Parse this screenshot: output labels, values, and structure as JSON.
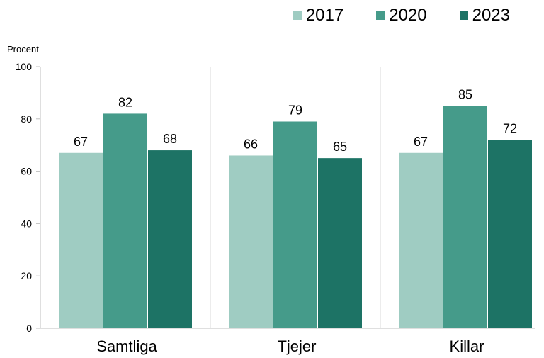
{
  "chart_data": {
    "type": "bar",
    "ylabel": "Procent",
    "ylim": [
      0,
      100
    ],
    "yticks": [
      0,
      20,
      40,
      60,
      80,
      100
    ],
    "categories": [
      "Samtliga",
      "Tjejer",
      "Killar"
    ],
    "series": [
      {
        "name": "2017",
        "color": "#9fccc2",
        "values": [
          67,
          66,
          67
        ]
      },
      {
        "name": "2020",
        "color": "#459b8a",
        "values": [
          82,
          79,
          85
        ]
      },
      {
        "name": "2023",
        "color": "#1d7365",
        "values": [
          68,
          65,
          72
        ]
      }
    ],
    "legend_position": "top-right",
    "grid": false,
    "data_labels": true
  }
}
